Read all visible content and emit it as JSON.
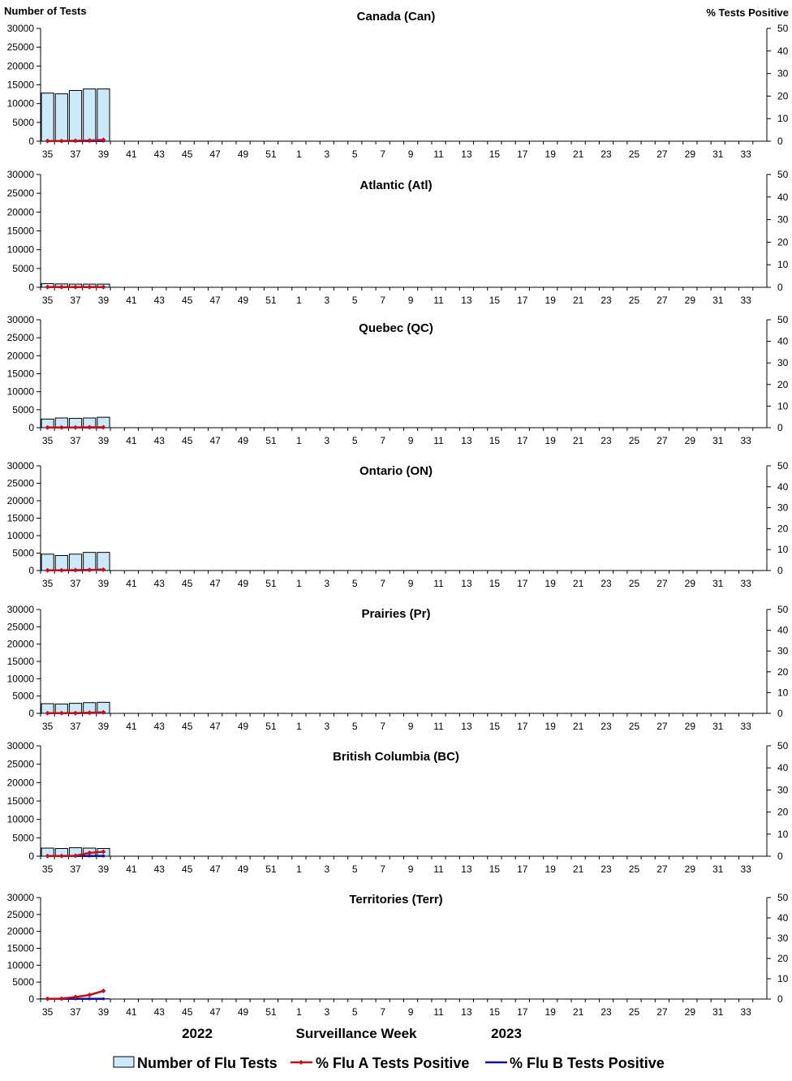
{
  "chart_data": {
    "type": "bar",
    "left_axis_title": "Number of Tests",
    "right_axis_title": "%  Tests Positive",
    "x_axis_title": "Surveillance Week",
    "year_labels": [
      "2022",
      "2023"
    ],
    "weeks": [
      35,
      36,
      37,
      38,
      39,
      40,
      41,
      42,
      43,
      44,
      45,
      46,
      47,
      48,
      49,
      50,
      51,
      52,
      1,
      2,
      3,
      4,
      5,
      6,
      7,
      8,
      9,
      10,
      11,
      12,
      13,
      14,
      15,
      16,
      17,
      18,
      19,
      20,
      21,
      22,
      23,
      24,
      25,
      26,
      27,
      28,
      29,
      30,
      31,
      32,
      33,
      34
    ],
    "x_tick_labels": [
      "35",
      "37",
      "39",
      "41",
      "43",
      "45",
      "47",
      "49",
      "51",
      "1",
      "3",
      "5",
      "7",
      "9",
      "11",
      "13",
      "15",
      "17",
      "19",
      "21",
      "23",
      "25",
      "27",
      "29",
      "31",
      "33"
    ],
    "y_left_ticks": [
      "0",
      "5000",
      "10000",
      "15000",
      "20000",
      "25000",
      "30000"
    ],
    "y_right_ticks": [
      "0",
      "10",
      "20",
      "30",
      "40",
      "50"
    ],
    "ylim_left": [
      0,
      30000
    ],
    "ylim_right": [
      0,
      50
    ],
    "legend": {
      "bars": "Number of Flu Tests",
      "flu_a": "% Flu A Tests Positive",
      "flu_b": "% Flu B Tests Positive"
    },
    "colors": {
      "bar_fill": "#cce9f9",
      "bar_stroke": "#000000",
      "flu_a": "#c0101a",
      "flu_b": "#10109a"
    },
    "panels": [
      {
        "title": "Canada (Can)",
        "tests": [
          12800,
          12600,
          13500,
          13900,
          13900
        ],
        "flu_a": [
          0.1,
          0.1,
          0.2,
          0.3,
          0.6
        ],
        "flu_b": [
          0.1,
          0.1,
          0.1,
          0.1,
          0.1
        ]
      },
      {
        "title": "Atlantic (Atl)",
        "tests": [
          1000,
          900,
          850,
          850,
          850
        ],
        "flu_a": [
          0.1,
          0.1,
          0.1,
          0.1,
          0.1
        ],
        "flu_b": [
          0.1,
          0.1,
          0.1,
          0.1,
          0.1
        ]
      },
      {
        "title": "Quebec (QC)",
        "tests": [
          2400,
          2700,
          2600,
          2700,
          2900
        ],
        "flu_a": [
          0.1,
          0.1,
          0.1,
          0.2,
          0.2
        ],
        "flu_b": [
          0.1,
          0.1,
          0.1,
          0.1,
          0.1
        ]
      },
      {
        "title": "Ontario (ON)",
        "tests": [
          4700,
          4300,
          4700,
          5200,
          5200
        ],
        "flu_a": [
          0.1,
          0.1,
          0.2,
          0.3,
          0.4
        ],
        "flu_b": [
          0.1,
          0.1,
          0.1,
          0.2,
          0.5
        ]
      },
      {
        "title": "Prairies (Pr)",
        "tests": [
          2800,
          2700,
          2900,
          3100,
          3200
        ],
        "flu_a": [
          0.1,
          0.1,
          0.1,
          0.3,
          0.5
        ],
        "flu_b": [
          0.1,
          0.1,
          0.1,
          0.2,
          0.3
        ]
      },
      {
        "title": "British Columbia (BC)",
        "tests": [
          2200,
          2100,
          2300,
          2200,
          2100
        ],
        "flu_a": [
          0.1,
          0.1,
          0.2,
          1.5,
          2.0
        ],
        "flu_b": [
          0.1,
          0.1,
          0.1,
          0.1,
          0.1
        ]
      },
      {
        "title": "Territories (Terr)",
        "tests": [
          60,
          50,
          60,
          70,
          60
        ],
        "flu_a": [
          0.1,
          0.2,
          1.0,
          2.0,
          4.0
        ],
        "flu_b": [
          0.1,
          0.1,
          0.1,
          0.1,
          0.1
        ]
      }
    ]
  }
}
